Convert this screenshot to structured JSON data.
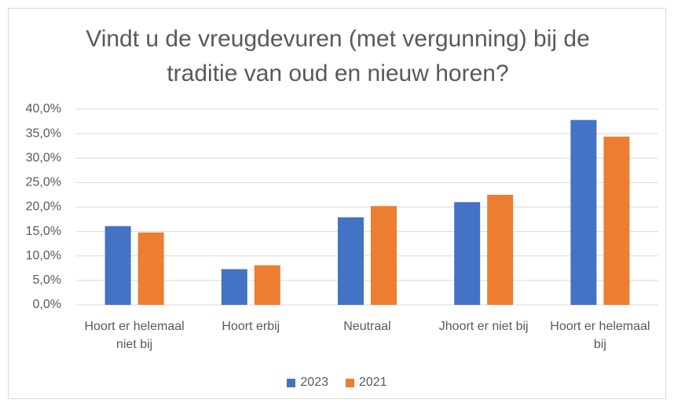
{
  "chart_data": {
    "type": "bar",
    "title": "Vindt u de vreugdevuren (met vergunning) bij de traditie van oud en nieuw horen?",
    "categories": [
      "Hoort er helemaal niet bij",
      "Hoort erbij",
      "Neutraal",
      "Jhoort er niet bij",
      "Hoort er helemaal bij"
    ],
    "series": [
      {
        "name": "2023",
        "color": "#4472c4",
        "values": [
          16.1,
          7.3,
          17.9,
          21.0,
          37.8
        ]
      },
      {
        "name": "2021",
        "color": "#ed7d31",
        "values": [
          14.8,
          8.1,
          20.2,
          22.5,
          34.4
        ]
      }
    ],
    "ylim": [
      0,
      40
    ],
    "yticks": [
      {
        "value": 0,
        "label": "0,0%"
      },
      {
        "value": 5,
        "label": "5,0%"
      },
      {
        "value": 10,
        "label": "10,0%"
      },
      {
        "value": 15,
        "label": "15,0%"
      },
      {
        "value": 20,
        "label": "20,0%"
      },
      {
        "value": 25,
        "label": "25,0%"
      },
      {
        "value": 30,
        "label": "30,0%"
      },
      {
        "value": 35,
        "label": "35,0%"
      },
      {
        "value": 40,
        "label": "40,0%"
      }
    ],
    "grid": true,
    "legend": "bottom"
  }
}
